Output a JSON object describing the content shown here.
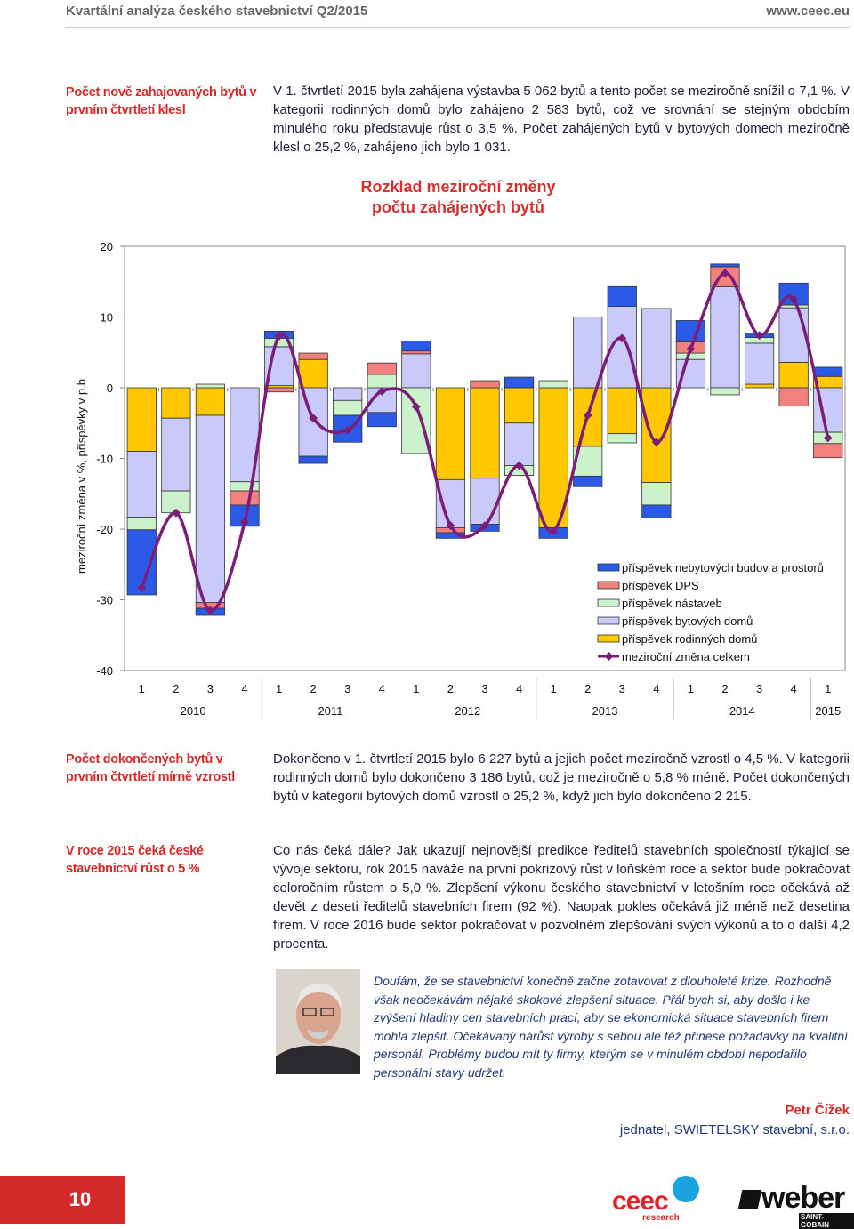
{
  "header": {
    "title": "Kvartální analýza českého stavebnictví Q2/2015",
    "url": "www.ceec.eu"
  },
  "sections": [
    {
      "heading": "Počet nově zahajovaných bytů v prvním čtvrtletí klesl",
      "paragraphs": [
        "V 1. čtvrtletí 2015 byla zahájena výstavba 5 062 bytů a tento počet se meziročně snížil o 7,1 %. V kategorii rodinných domů bylo zahájeno 2 583 bytů, což ve srovnání se stejným obdobím minulého roku představuje růst o 3,5 %. Počet zahájených bytů v bytových domech meziročně klesl o 25,2 %, zahájeno jich bylo 1 031."
      ]
    },
    {
      "heading": "Počet dokončených bytů v prvním čtvrtletí mírně vzrostl",
      "paragraphs": [
        "Dokončeno v 1. čtvrtletí 2015 bylo 6 227 bytů a jejich počet meziročně vzrostl o 4,5 %. V kategorii rodinných domů bylo dokončeno 3 186 bytů, což je meziročně o 5,8 % méně. Počet dokončených bytů v kategorii bytových domů vzrostl o 25,2 %, když jich bylo dokončeno 2 215."
      ]
    },
    {
      "heading": "V roce 2015 čeká české stavebnictví růst o 5 %",
      "paragraphs": [
        "Co nás čeká dále? Jak ukazují nejnovější predikce ředitelů stavebních společností týkající se vývoje sektoru, rok 2015 naváže na první pokrizový růst v loňském roce a sektor bude pokračovat celoročním růstem o 5,0 %. Zlepšení výkonu českého stavebnictví v letošním roce očekává až devět z deseti ředitelů stavebních firem (92 %). Naopak pokles očekává již méně než desetina firem. V roce 2016 bude sektor pokračovat v pozvolném zlepšování svých výkonů a to o další 4,2 procenta."
      ]
    }
  ],
  "chart_data": {
    "type": "stacked-bar-line",
    "title": "Rozklad meziroční změny počtu zahájených bytů",
    "y_label": "meziroční změna v %, příspěvky v p.b",
    "categories": [
      "1",
      "2",
      "3",
      "4",
      "1",
      "2",
      "3",
      "4",
      "1",
      "2",
      "3",
      "4",
      "1",
      "2",
      "3",
      "4",
      "1",
      "2",
      "3",
      "4",
      "1"
    ],
    "years": [
      "2010",
      "2011",
      "2012",
      "2013",
      "2014",
      "2015"
    ],
    "ylim": [
      -40,
      20
    ],
    "yticks": [
      20,
      10,
      0,
      -10,
      -20,
      -30,
      -40
    ],
    "series": [
      {
        "name": "příspěvek nebytových budov a prostorů",
        "color": "#2b5be6",
        "type": "bar",
        "values": [
          -9.2,
          0,
          -1,
          -3,
          1,
          -1,
          -3.8,
          -2,
          1.4,
          -0.8,
          -1,
          1.5,
          -1.5,
          -1.5,
          2.8,
          -1.8,
          3,
          0.4,
          0.5,
          3.1,
          1.3
        ]
      },
      {
        "name": "příspěvek DPS",
        "color": "#f2807c",
        "type": "bar",
        "values": [
          0,
          0,
          -0.8,
          -2,
          -0.6,
          0.9,
          0,
          1.6,
          0.4,
          -0.7,
          1,
          0,
          0,
          0,
          0,
          0,
          1.6,
          2.8,
          0,
          -2.6,
          -2
        ]
      },
      {
        "name": "příspěvek nástaveb",
        "color": "#ccf2cc",
        "type": "bar",
        "values": [
          -1.8,
          -3.1,
          0.5,
          -1.3,
          1.2,
          0,
          -2.1,
          1.9,
          -9.3,
          0,
          0,
          -1.4,
          1,
          -4.2,
          -1.3,
          -3.2,
          0.9,
          -1,
          0.8,
          0.4,
          -1.6
        ]
      },
      {
        "name": "příspěvek bytových domů",
        "color": "#cacafa",
        "type": "bar",
        "values": [
          -9.3,
          -10.3,
          -26.5,
          -13.3,
          5.5,
          -9.7,
          -1.8,
          -3.5,
          4.8,
          -6.8,
          -6.5,
          -6,
          0,
          10,
          11.5,
          11.2,
          4,
          14.3,
          5.8,
          7.7,
          -6.3
        ]
      },
      {
        "name": "příspěvek rodinných domů",
        "color": "#ffc800",
        "type": "bar",
        "values": [
          -9,
          -4.3,
          -3.9,
          0,
          0.3,
          4,
          0,
          0,
          0,
          -13,
          -12.8,
          -5,
          -19.8,
          -8.3,
          -6.5,
          -13.4,
          0,
          0,
          0.5,
          3.6,
          1.6
        ]
      },
      {
        "name": "meziroční změna celkem",
        "color": "#7b1e7a",
        "type": "line",
        "values": [
          -28.3,
          -17.7,
          -31.5,
          -19,
          7.3,
          -4.3,
          -6,
          -0.5,
          -2.7,
          -19.5,
          -19.5,
          -11,
          -20.3,
          -3.9,
          7,
          -7.7,
          5.5,
          16.2,
          7.4,
          12.5,
          -7.1
        ]
      }
    ]
  },
  "quote": {
    "text": "Doufám, že se stavebnictví konečně začne zotavovat z dlouholeté krize. Rozhodně však neočekávám nějaké skokové zlepšení situace. Přál bych si, aby došlo i ke zvýšení hladiny cen stavebních prací, aby se ekonomická situace stavebních firem mohla zlepšit. Očekávaný nárůst výroby s sebou ale též přinese požadavky na kvalitní personál. Problémy budou mít ty firmy, kterým se v minulém období nepodařilo personální stavy udržet.",
    "author": "Petr Čížek",
    "role": "jednatel, SWIETELSKY stavební, s.r.o."
  },
  "footer": {
    "page": "10",
    "logo_ceec": "ceec",
    "logo_ceec_sub": "research",
    "logo_weber": "weber",
    "logo_weber_sub": "SAINT-GOBAIN"
  }
}
